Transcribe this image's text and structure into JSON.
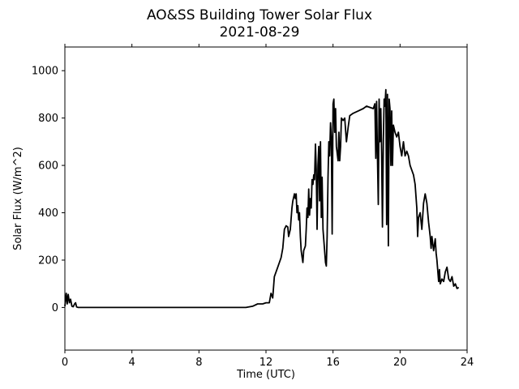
{
  "chart_data": {
    "type": "line",
    "title": "AO&SS Building Tower Solar Flux",
    "subtitle": "2021-08-29",
    "xlabel": "Time (UTC)",
    "ylabel": "Solar Flux (W/m^2)",
    "xlim": [
      0,
      24
    ],
    "ylim": [
      -180,
      1100
    ],
    "xticks": [
      0,
      4,
      8,
      12,
      16,
      20,
      24
    ],
    "yticks": [
      0,
      200,
      400,
      600,
      800,
      1000
    ],
    "grid": false,
    "line_color": "#000000",
    "series": [
      {
        "points": [
          [
            0.0,
            5
          ],
          [
            0.08,
            60
          ],
          [
            0.14,
            15
          ],
          [
            0.2,
            55
          ],
          [
            0.27,
            20
          ],
          [
            0.34,
            35
          ],
          [
            0.42,
            5
          ],
          [
            0.5,
            3
          ],
          [
            0.58,
            15
          ],
          [
            0.64,
            20
          ],
          [
            0.7,
            2
          ],
          [
            0.8,
            0
          ],
          [
            1.0,
            0
          ],
          [
            4.0,
            0
          ],
          [
            8.0,
            0
          ],
          [
            10.8,
            0
          ],
          [
            11.2,
            5
          ],
          [
            11.5,
            15
          ],
          [
            11.8,
            15
          ],
          [
            12.0,
            20
          ],
          [
            12.2,
            20
          ],
          [
            12.3,
            60
          ],
          [
            12.4,
            40
          ],
          [
            12.5,
            130
          ],
          [
            12.7,
            170
          ],
          [
            12.9,
            210
          ],
          [
            13.0,
            250
          ],
          [
            13.1,
            330
          ],
          [
            13.2,
            345
          ],
          [
            13.3,
            340
          ],
          [
            13.35,
            300
          ],
          [
            13.45,
            330
          ],
          [
            13.55,
            420
          ],
          [
            13.6,
            450
          ],
          [
            13.7,
            480
          ],
          [
            13.75,
            460
          ],
          [
            13.8,
            480
          ],
          [
            13.85,
            400
          ],
          [
            13.9,
            430
          ],
          [
            13.95,
            370
          ],
          [
            14.0,
            400
          ],
          [
            14.05,
            300
          ],
          [
            14.1,
            240
          ],
          [
            14.15,
            215
          ],
          [
            14.2,
            190
          ],
          [
            14.25,
            240
          ],
          [
            14.35,
            260
          ],
          [
            14.4,
            330
          ],
          [
            14.45,
            420
          ],
          [
            14.5,
            380
          ],
          [
            14.55,
            500
          ],
          [
            14.6,
            390
          ],
          [
            14.65,
            460
          ],
          [
            14.7,
            420
          ],
          [
            14.75,
            540
          ],
          [
            14.8,
            520
          ],
          [
            14.85,
            560
          ],
          [
            14.9,
            540
          ],
          [
            14.95,
            690
          ],
          [
            15.0,
            580
          ],
          [
            15.05,
            330
          ],
          [
            15.1,
            600
          ],
          [
            15.15,
            680
          ],
          [
            15.2,
            450
          ],
          [
            15.25,
            700
          ],
          [
            15.3,
            380
          ],
          [
            15.35,
            550
          ],
          [
            15.4,
            330
          ],
          [
            15.5,
            240
          ],
          [
            15.55,
            190
          ],
          [
            15.6,
            175
          ],
          [
            15.65,
            300
          ],
          [
            15.7,
            550
          ],
          [
            15.75,
            700
          ],
          [
            15.8,
            640
          ],
          [
            15.85,
            780
          ],
          [
            15.9,
            720
          ],
          [
            15.95,
            310
          ],
          [
            16.0,
            860
          ],
          [
            16.05,
            880
          ],
          [
            16.1,
            740
          ],
          [
            16.15,
            840
          ],
          [
            16.2,
            680
          ],
          [
            16.3,
            620
          ],
          [
            16.35,
            740
          ],
          [
            16.4,
            620
          ],
          [
            16.45,
            680
          ],
          [
            16.5,
            800
          ],
          [
            16.6,
            790
          ],
          [
            16.7,
            800
          ],
          [
            16.8,
            700
          ],
          [
            16.9,
            760
          ],
          [
            17.0,
            810
          ],
          [
            17.2,
            820
          ],
          [
            17.5,
            830
          ],
          [
            17.8,
            840
          ],
          [
            18.0,
            850
          ],
          [
            18.2,
            845
          ],
          [
            18.4,
            840
          ],
          [
            18.5,
            860
          ],
          [
            18.55,
            630
          ],
          [
            18.6,
            870
          ],
          [
            18.65,
            650
          ],
          [
            18.7,
            435
          ],
          [
            18.75,
            880
          ],
          [
            18.8,
            700
          ],
          [
            18.85,
            840
          ],
          [
            18.9,
            650
          ],
          [
            18.95,
            340
          ],
          [
            19.0,
            700
          ],
          [
            19.05,
            880
          ],
          [
            19.1,
            850
          ],
          [
            19.15,
            920
          ],
          [
            19.2,
            350
          ],
          [
            19.25,
            900
          ],
          [
            19.3,
            260
          ],
          [
            19.35,
            880
          ],
          [
            19.4,
            840
          ],
          [
            19.45,
            600
          ],
          [
            19.5,
            830
          ],
          [
            19.55,
            600
          ],
          [
            19.6,
            770
          ],
          [
            19.7,
            740
          ],
          [
            19.8,
            720
          ],
          [
            19.9,
            740
          ],
          [
            20.0,
            680
          ],
          [
            20.1,
            640
          ],
          [
            20.2,
            700
          ],
          [
            20.3,
            640
          ],
          [
            20.4,
            660
          ],
          [
            20.5,
            640
          ],
          [
            20.6,
            600
          ],
          [
            20.7,
            580
          ],
          [
            20.8,
            560
          ],
          [
            20.9,
            520
          ],
          [
            21.0,
            420
          ],
          [
            21.05,
            300
          ],
          [
            21.1,
            380
          ],
          [
            21.2,
            400
          ],
          [
            21.3,
            330
          ],
          [
            21.4,
            440
          ],
          [
            21.5,
            480
          ],
          [
            21.6,
            440
          ],
          [
            21.7,
            360
          ],
          [
            21.8,
            300
          ],
          [
            21.85,
            250
          ],
          [
            21.9,
            300
          ],
          [
            22.0,
            240
          ],
          [
            22.1,
            290
          ],
          [
            22.15,
            230
          ],
          [
            22.2,
            200
          ],
          [
            22.3,
            110
          ],
          [
            22.35,
            160
          ],
          [
            22.4,
            100
          ],
          [
            22.5,
            120
          ],
          [
            22.6,
            110
          ],
          [
            22.7,
            150
          ],
          [
            22.8,
            170
          ],
          [
            22.9,
            120
          ],
          [
            23.0,
            110
          ],
          [
            23.1,
            130
          ],
          [
            23.2,
            90
          ],
          [
            23.3,
            100
          ],
          [
            23.4,
            80
          ],
          [
            23.5,
            85
          ]
        ]
      }
    ]
  }
}
